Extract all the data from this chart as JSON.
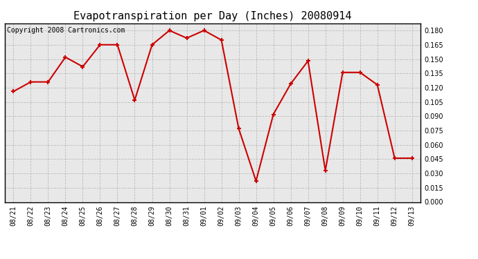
{
  "title": "Evapotranspiration per Day (Inches) 20080914",
  "copyright": "Copyright 2008 Cartronics.com",
  "dates": [
    "08/21",
    "08/22",
    "08/23",
    "08/24",
    "08/25",
    "08/26",
    "08/27",
    "08/28",
    "08/29",
    "08/30",
    "08/31",
    "09/01",
    "09/02",
    "09/03",
    "09/04",
    "09/05",
    "09/06",
    "09/07",
    "09/08",
    "09/09",
    "09/10",
    "09/11",
    "09/12",
    "09/13"
  ],
  "values": [
    0.116,
    0.126,
    0.126,
    0.152,
    0.142,
    0.165,
    0.165,
    0.107,
    0.165,
    0.18,
    0.172,
    0.18,
    0.17,
    0.077,
    0.022,
    0.092,
    0.124,
    0.148,
    0.033,
    0.136,
    0.136,
    0.123,
    0.046,
    0.046
  ],
  "line_color": "#cc0000",
  "marker": "+",
  "marker_color": "#cc0000",
  "bg_color": "#ffffff",
  "plot_bg_color": "#e8e8e8",
  "grid_color": "#bbbbbb",
  "ylim_min": 0.0,
  "ylim_max": 0.1875,
  "ytick_step": 0.015,
  "title_fontsize": 11,
  "copyright_fontsize": 7,
  "tick_fontsize": 7,
  "line_width": 1.5,
  "marker_size": 5
}
